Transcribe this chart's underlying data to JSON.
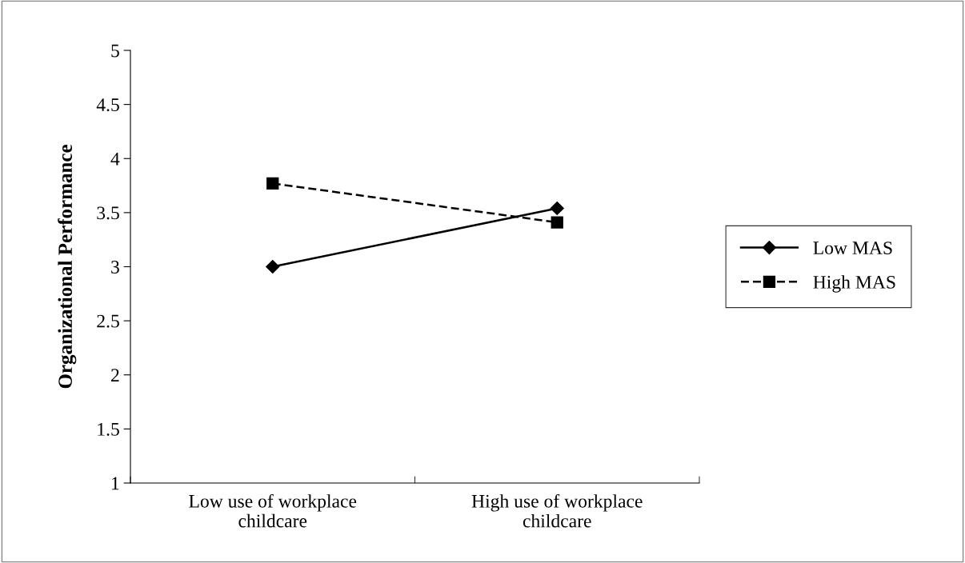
{
  "chart_data": {
    "type": "line",
    "ylabel": "Organizational Performance",
    "categories": [
      "Low use of workplace childcare",
      "High use of workplace childcare"
    ],
    "series": [
      {
        "name": "Low MAS",
        "color": "#000000",
        "values": [
          3.0,
          3.54
        ],
        "marker": "diamond",
        "line_style": "solid"
      },
      {
        "name": "High MAS",
        "color": "#000000",
        "values": [
          3.77,
          3.41
        ],
        "marker": "square",
        "line_style": "dashed"
      }
    ],
    "ylim": [
      1,
      5
    ],
    "yticks": [
      1,
      1.5,
      2,
      2.5,
      3,
      3.5,
      4,
      4.5,
      5
    ],
    "grid": false,
    "legend": "right"
  }
}
